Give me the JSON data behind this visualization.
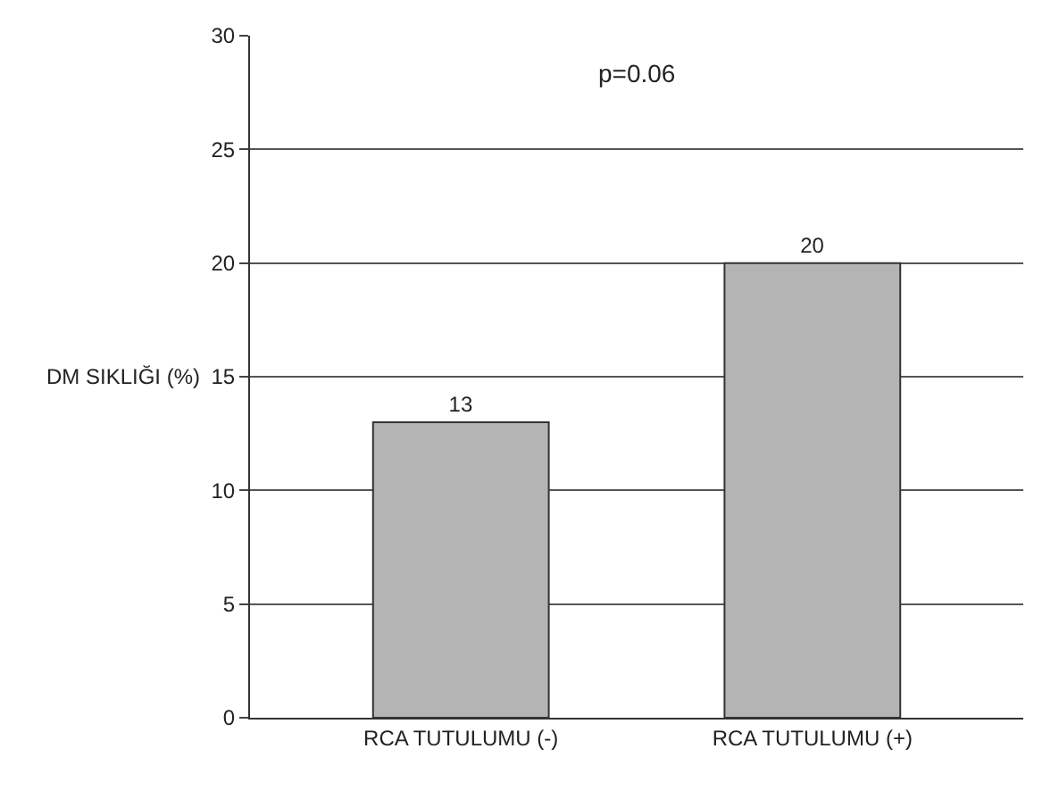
{
  "chart_data": {
    "type": "bar",
    "ylabel": "DM SIKLIĞI (%)",
    "categories": [
      "RCA TUTULUMU (-)",
      "RCA TUTULUMU (+)"
    ],
    "values": [
      13,
      20
    ],
    "color": "#b4b4b4",
    "data_labels": true,
    "ylim": [
      0,
      30
    ],
    "yticks": [
      0,
      5,
      10,
      15,
      20,
      25,
      30
    ],
    "grid": "y",
    "annotations": [
      "p=0.06"
    ]
  }
}
